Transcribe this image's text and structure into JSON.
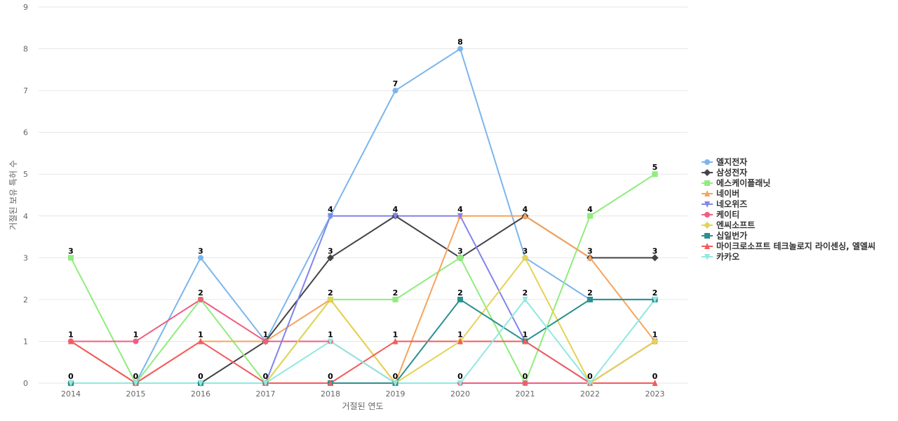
{
  "chart_data": {
    "type": "line",
    "xlabel": "거절된 연도",
    "ylabel": "거절된 보유 특허 수",
    "ylim": [
      0,
      9
    ],
    "yticks": [
      0,
      1,
      2,
      3,
      4,
      5,
      6,
      7,
      8,
      9
    ],
    "categories": [
      "2014",
      "2015",
      "2016",
      "2017",
      "2018",
      "2019",
      "2020",
      "2021",
      "2022",
      "2023"
    ],
    "grid": true,
    "legend_position": "right",
    "series": [
      {
        "name": "엘지전자",
        "color": "#7cb5ec",
        "marker": "circle",
        "values": [
          1,
          0,
          3,
          1,
          4,
          7,
          8,
          3,
          2,
          2
        ]
      },
      {
        "name": "삼성전자",
        "color": "#434348",
        "marker": "diamond",
        "values": [
          0,
          0,
          0,
          1,
          3,
          4,
          3,
          4,
          3,
          3
        ]
      },
      {
        "name": "에스케이플래닛",
        "color": "#90ed7d",
        "marker": "square",
        "values": [
          3,
          0,
          2,
          0,
          2,
          2,
          3,
          0,
          4,
          5
        ]
      },
      {
        "name": "네이버",
        "color": "#f7a35c",
        "marker": "triangle",
        "values": [
          1,
          0,
          1,
          1,
          2,
          0,
          4,
          4,
          3,
          1
        ]
      },
      {
        "name": "네오위즈",
        "color": "#8085e9",
        "marker": "triangle-down",
        "values": [
          0,
          0,
          0,
          0,
          4,
          4,
          4,
          1,
          0,
          1
        ]
      },
      {
        "name": "케이티",
        "color": "#f15c80",
        "marker": "circle",
        "values": [
          1,
          1,
          2,
          1,
          1,
          0,
          0,
          0,
          0,
          1
        ]
      },
      {
        "name": "엔씨소프트",
        "color": "#e4d354",
        "marker": "diamond",
        "values": [
          0,
          0,
          0,
          0,
          2,
          0,
          1,
          3,
          0,
          1
        ]
      },
      {
        "name": "십일번가",
        "color": "#2b908f",
        "marker": "square",
        "values": [
          0,
          0,
          0,
          0,
          0,
          0,
          2,
          1,
          2,
          2
        ]
      },
      {
        "name": "마이크로소프트 테크놀로지 라이센싱, 엘엘씨",
        "color": "#f45b5b",
        "marker": "triangle",
        "values": [
          1,
          0,
          1,
          0,
          0,
          1,
          1,
          1,
          0,
          0
        ]
      },
      {
        "name": "카카오",
        "color": "#91e8e1",
        "marker": "triangle-down",
        "values": [
          0,
          0,
          0,
          0,
          1,
          0,
          0,
          2,
          0,
          2
        ]
      }
    ],
    "data_labels": [
      {
        "x": "2014",
        "series": "에스케이플래닛",
        "text": "3"
      },
      {
        "x": "2014",
        "series": "엘지전자",
        "text": "1"
      },
      {
        "x": "2014",
        "series": "삼성전자",
        "text": "0"
      },
      {
        "x": "2015",
        "series": "케이티",
        "text": "1"
      },
      {
        "x": "2015",
        "series": "엘지전자",
        "text": "0"
      },
      {
        "x": "2016",
        "series": "엘지전자",
        "text": "3"
      },
      {
        "x": "2016",
        "series": "케이티",
        "text": "2"
      },
      {
        "x": "2016",
        "series": "네이버",
        "text": "1"
      },
      {
        "x": "2016",
        "series": "삼성전자",
        "text": "0"
      },
      {
        "x": "2017",
        "series": "엘지전자",
        "text": "1"
      },
      {
        "x": "2017",
        "series": "에스케이플래닛",
        "text": "0"
      },
      {
        "x": "2018",
        "series": "엘지전자",
        "text": "4"
      },
      {
        "x": "2018",
        "series": "삼성전자",
        "text": "3"
      },
      {
        "x": "2018",
        "series": "네이버",
        "text": "2"
      },
      {
        "x": "2018",
        "series": "카카오",
        "text": "1"
      },
      {
        "x": "2018",
        "series": "십일번가",
        "text": "0"
      },
      {
        "x": "2019",
        "series": "엘지전자",
        "text": "7"
      },
      {
        "x": "2019",
        "series": "삼성전자",
        "text": "4"
      },
      {
        "x": "2019",
        "series": "에스케이플래닛",
        "text": "2"
      },
      {
        "x": "2019",
        "series": "마이크로소프트 테크놀로지 라이센싱, 엘엘씨",
        "text": "1"
      },
      {
        "x": "2019",
        "series": "네이버",
        "text": "0"
      },
      {
        "x": "2020",
        "series": "엘지전자",
        "text": "8"
      },
      {
        "x": "2020",
        "series": "네이버",
        "text": "4"
      },
      {
        "x": "2020",
        "series": "삼성전자",
        "text": "3"
      },
      {
        "x": "2020",
        "series": "십일번가",
        "text": "2"
      },
      {
        "x": "2020",
        "series": "엔씨소프트",
        "text": "1"
      },
      {
        "x": "2020",
        "series": "카카오",
        "text": "0"
      },
      {
        "x": "2021",
        "series": "삼성전자",
        "text": "4"
      },
      {
        "x": "2021",
        "series": "엘지전자",
        "text": "3"
      },
      {
        "x": "2021",
        "series": "카카오",
        "text": "2"
      },
      {
        "x": "2021",
        "series": "십일번가",
        "text": "1"
      },
      {
        "x": "2021",
        "series": "에스케이플래닛",
        "text": "0"
      },
      {
        "x": "2022",
        "series": "에스케이플래닛",
        "text": "4"
      },
      {
        "x": "2022",
        "series": "삼성전자",
        "text": "3"
      },
      {
        "x": "2022",
        "series": "엘지전자",
        "text": "2"
      },
      {
        "x": "2022",
        "series": "카카오",
        "text": "0"
      },
      {
        "x": "2023",
        "series": "에스케이플래닛",
        "text": "5"
      },
      {
        "x": "2023",
        "series": "삼성전자",
        "text": "3"
      },
      {
        "x": "2023",
        "series": "엘지전자",
        "text": "2"
      },
      {
        "x": "2023",
        "series": "네이버",
        "text": "1"
      },
      {
        "x": "2023",
        "series": "마이크로소프트 테크놀로지 라이센싱, 엘엘씨",
        "text": "0"
      }
    ]
  }
}
